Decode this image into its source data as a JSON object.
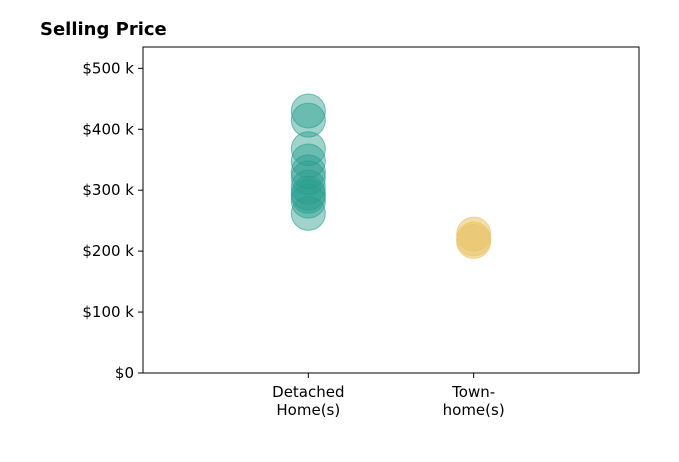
{
  "chart_data": {
    "type": "scatter",
    "title": "Selling Price",
    "xlabel": "",
    "ylabel": "",
    "categories": [
      [
        "Detached",
        "Home(s)"
      ],
      [
        "Town-",
        "home(s)"
      ]
    ],
    "xlim": [
      0,
      3
    ],
    "ylim": [
      0,
      535
    ],
    "y_ticks": [
      {
        "value": 0,
        "label": "$0"
      },
      {
        "value": 100,
        "label": "$100 k"
      },
      {
        "value": 200,
        "label": "$200 k"
      },
      {
        "value": 300,
        "label": "$300 k"
      },
      {
        "value": 400,
        "label": "$400 k"
      },
      {
        "value": 500,
        "label": "$500 k"
      }
    ],
    "grid": false,
    "series": [
      {
        "color": "#2a9d8f",
        "opacity": 0.45,
        "points": [
          {
            "x": 1,
            "y": 430
          },
          {
            "x": 1,
            "y": 415
          },
          {
            "x": 1,
            "y": 368
          },
          {
            "x": 1,
            "y": 348
          },
          {
            "x": 1,
            "y": 330
          },
          {
            "x": 1,
            "y": 320
          },
          {
            "x": 1,
            "y": 305
          },
          {
            "x": 1,
            "y": 295
          },
          {
            "x": 1,
            "y": 290
          },
          {
            "x": 1,
            "y": 282
          },
          {
            "x": 1,
            "y": 262
          }
        ]
      },
      {
        "color": "#e9c46a",
        "opacity": 0.55,
        "points": [
          {
            "x": 2,
            "y": 228
          },
          {
            "x": 2,
            "y": 220
          },
          {
            "x": 2,
            "y": 216
          }
        ]
      }
    ]
  }
}
